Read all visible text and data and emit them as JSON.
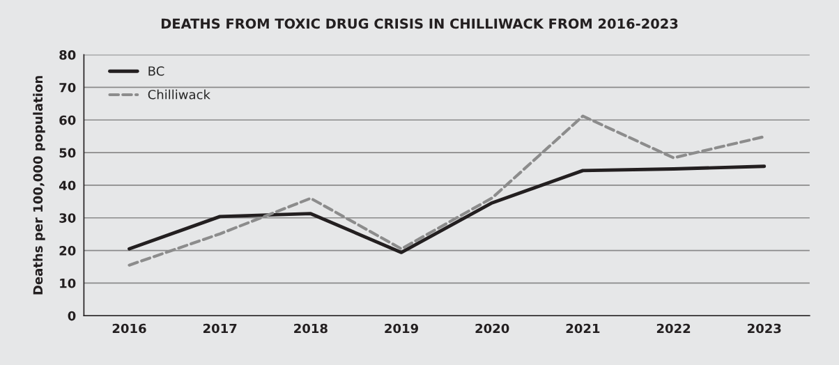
{
  "chart_data": {
    "type": "line",
    "title": "DEATHS FROM TOXIC DRUG CRISIS IN CHILLIWACK FROM 2016-2023",
    "ylabel": "Deaths per 100,000 population",
    "categories": [
      "2016",
      "2017",
      "2018",
      "2019",
      "2020",
      "2021",
      "2022",
      "2023"
    ],
    "series": [
      {
        "name": "BC",
        "color": "#231f20",
        "line_style": "solid",
        "values": [
          20.5,
          30.4,
          31.3,
          19.4,
          34.6,
          44.5,
          45.0,
          45.8
        ]
      },
      {
        "name": "Chilliwack",
        "color": "#8c8c8c",
        "line_style": "dashed",
        "values": [
          15.5,
          25.1,
          36.0,
          20.5,
          36.1,
          61.2,
          48.4,
          54.9
        ]
      }
    ],
    "ylim": [
      0,
      80
    ],
    "yticks": [
      0,
      10,
      20,
      30,
      40,
      50,
      60,
      70,
      80
    ],
    "grid": "y",
    "legend": "top left",
    "marker": "none"
  }
}
